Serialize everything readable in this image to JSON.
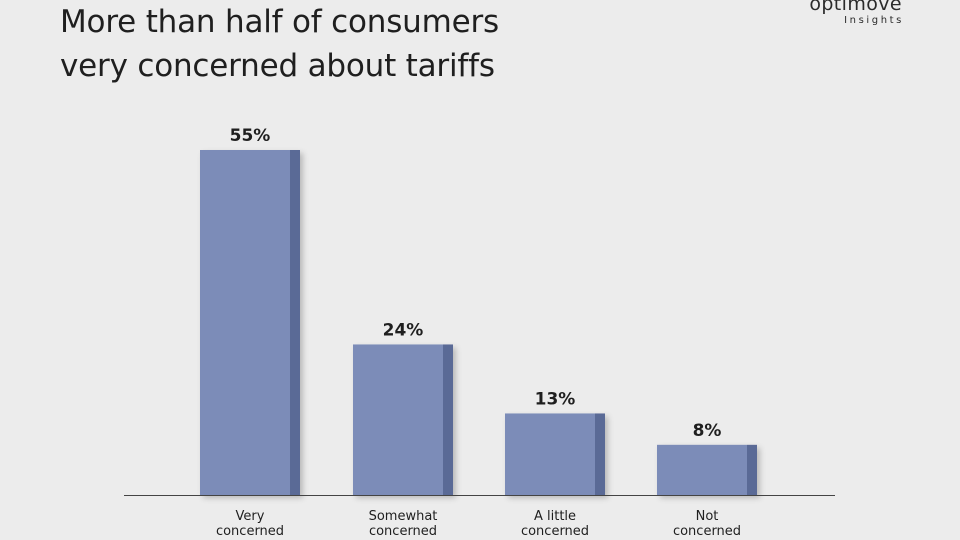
{
  "title": {
    "line1": "More than half of consumers",
    "line2": "very concerned about tariffs"
  },
  "logo": {
    "main": "optimove",
    "sub": "Insights"
  },
  "colors": {
    "bar": "#7b8cb8",
    "bar_side": "#5a6a96",
    "axis": "#444444",
    "background": "#ececec"
  },
  "chart_data": {
    "type": "bar",
    "categories": [
      [
        "Very",
        "concerned"
      ],
      [
        "Somewhat",
        "concerned"
      ],
      [
        "A little",
        "concerned"
      ],
      [
        "Not",
        "concerned"
      ]
    ],
    "values": [
      55,
      24,
      13,
      8
    ],
    "value_labels": [
      "55%",
      "24%",
      "13%",
      "8%"
    ],
    "ylim": [
      0,
      55
    ],
    "grid": false,
    "legend": "none"
  }
}
